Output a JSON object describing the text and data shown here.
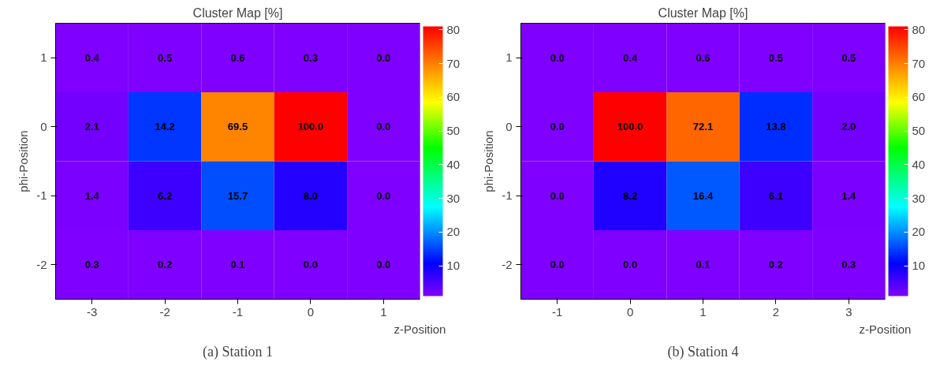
{
  "chart_data": [
    {
      "type": "heatmap",
      "title": "Cluster Map [%]",
      "xlabel": "z-Position",
      "ylabel": "phi-Position",
      "annotations": [
        "(a) Station 1"
      ],
      "categories": [
        "-3",
        "-2",
        "-1",
        "0",
        "1"
      ],
      "y_categories": [
        "1",
        "0",
        "-1",
        "-2"
      ],
      "cells": [
        [
          0.4,
          0.5,
          0.6,
          0.3,
          0.0
        ],
        [
          2.1,
          14.2,
          69.5,
          100.0,
          0.0
        ],
        [
          1.4,
          6.2,
          15.7,
          8.0,
          0.0
        ],
        [
          0.3,
          0.2,
          0.1,
          0.0,
          0.0
        ]
      ],
      "cell_labels": [
        [
          "0.4",
          "0.5",
          "0.6",
          "0.3",
          "0.0"
        ],
        [
          "2.1",
          "14.2",
          "69.5",
          "100.0",
          "0.0"
        ],
        [
          "1.4",
          "6.2",
          "15.7",
          "8.0",
          "0.0"
        ],
        [
          "0.3",
          "0.2",
          "0.1",
          "0.0",
          "0.0"
        ]
      ],
      "clim": [
        1,
        81
      ],
      "cticks": [
        10,
        20,
        30,
        40,
        50,
        60,
        70,
        80
      ],
      "grid": false
    },
    {
      "type": "heatmap",
      "title": "Cluster Map [%]",
      "xlabel": "z-Position",
      "ylabel": "phi-Position",
      "annotations": [
        "(b) Station 4"
      ],
      "categories": [
        "-1",
        "0",
        "1",
        "2",
        "3"
      ],
      "y_categories": [
        "1",
        "0",
        "-1",
        "-2"
      ],
      "cells": [
        [
          0.0,
          0.4,
          0.6,
          0.5,
          0.5
        ],
        [
          0.0,
          100.0,
          72.1,
          13.8,
          2.0
        ],
        [
          0.0,
          8.2,
          16.4,
          6.1,
          1.4
        ],
        [
          0.0,
          0.0,
          0.1,
          0.2,
          0.3
        ]
      ],
      "cell_labels": [
        [
          "0.0",
          "0.4",
          "0.6",
          "0.5",
          "0.5"
        ],
        [
          "0.0",
          "100.0",
          "72.1",
          "13.8",
          "2.0"
        ],
        [
          "0.0",
          "8.2",
          "16.4",
          "6.1",
          "1.4"
        ],
        [
          "0.0",
          "0.0",
          "0.1",
          "0.2",
          "0.3"
        ]
      ],
      "clim": [
        1,
        81
      ],
      "cticks": [
        10,
        20,
        30,
        40,
        50,
        60,
        70,
        80
      ],
      "grid": false
    }
  ]
}
